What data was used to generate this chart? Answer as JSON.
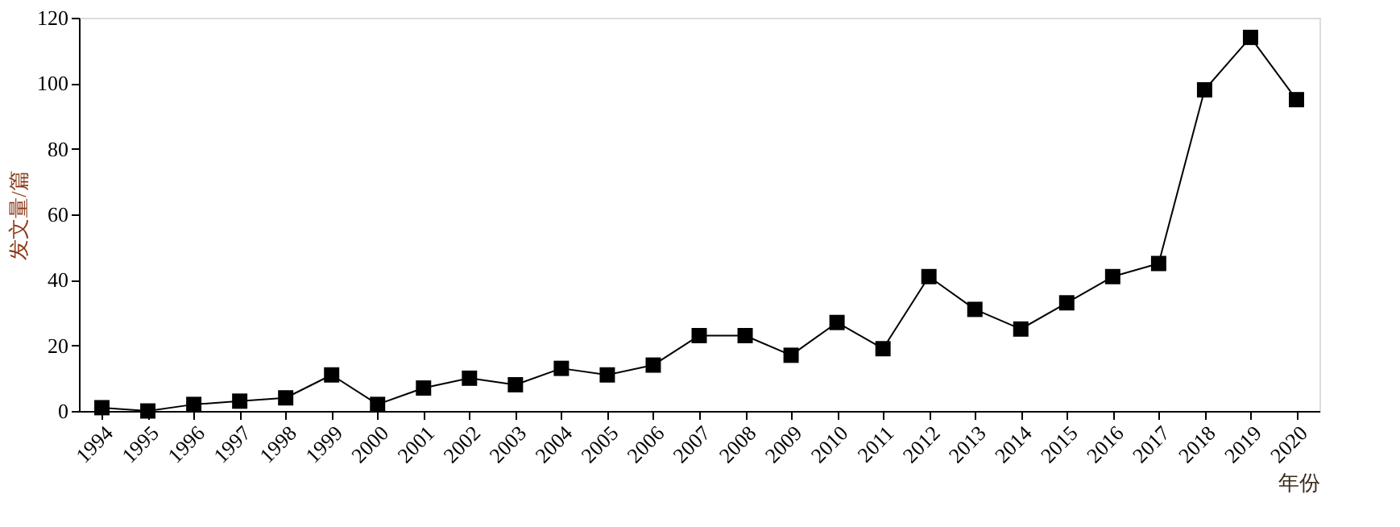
{
  "chart_data": {
    "type": "line",
    "xlabel": "年份",
    "ylabel": "发文量/篇",
    "categories": [
      "1994",
      "1995",
      "1996",
      "1997",
      "1998",
      "1999",
      "2000",
      "2001",
      "2002",
      "2003",
      "2004",
      "2005",
      "2006",
      "2007",
      "2008",
      "2009",
      "2010",
      "2011",
      "2012",
      "2013",
      "2014",
      "2015",
      "2016",
      "2017",
      "2018",
      "2019",
      "2020"
    ],
    "series": [
      {
        "color": "#000000",
        "values": [
          1,
          0,
          2,
          3,
          4,
          11,
          2,
          7,
          10,
          8,
          13,
          11,
          14,
          23,
          23,
          17,
          27,
          19,
          41,
          31,
          25,
          33,
          41,
          45,
          98,
          114,
          95
        ]
      }
    ],
    "ylim": [
      0,
      120
    ],
    "yticks": [
      0,
      20,
      40,
      60,
      80,
      100,
      120
    ],
    "grid": false,
    "legend": false,
    "marker": "square",
    "line_style": "solid"
  }
}
